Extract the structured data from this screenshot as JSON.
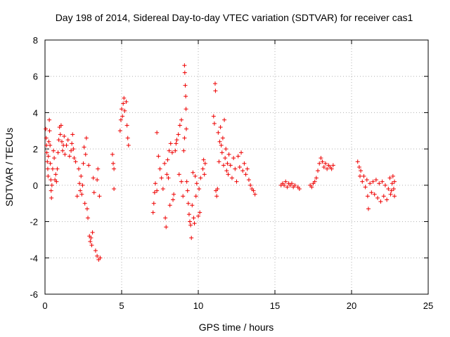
{
  "chart_data": {
    "type": "scatter",
    "title": "Day 198 of 2014, Sidereal Day-to-day VTEC variation (SDTVAR) for receiver cas1",
    "xlabel": "GPS time / hours",
    "ylabel": "SDTVAR / TECUs",
    "xlim": [
      0,
      25
    ],
    "ylim": [
      -6,
      8
    ],
    "xticks": [
      0,
      5,
      10,
      15,
      20,
      25
    ],
    "yticks": [
      -6,
      -4,
      -2,
      0,
      2,
      4,
      6,
      8
    ],
    "grid": true,
    "marker": "+",
    "color": "#ee0000",
    "series": [
      {
        "name": "cas1",
        "points": [
          [
            0.05,
            3.1
          ],
          [
            0.08,
            2.6
          ],
          [
            0.1,
            2.2
          ],
          [
            0.12,
            1.8
          ],
          [
            0.15,
            1.3
          ],
          [
            0.18,
            0.9
          ],
          [
            0.2,
            0.5
          ],
          [
            0.22,
            1.6
          ],
          [
            0.25,
            2.4
          ],
          [
            0.28,
            3.6
          ],
          [
            0.3,
            3.0
          ],
          [
            0.33,
            2.2
          ],
          [
            0.35,
            1.2
          ],
          [
            0.38,
            0.3
          ],
          [
            0.4,
            -0.3
          ],
          [
            0.42,
            -0.7
          ],
          [
            0.45,
            0.0
          ],
          [
            0.5,
            0.9
          ],
          [
            0.55,
            1.9
          ],
          [
            0.6,
            1.5
          ],
          [
            0.65,
            0.3
          ],
          [
            0.7,
            0.6
          ],
          [
            0.75,
            0.2
          ],
          [
            0.8,
            0.9
          ],
          [
            0.85,
            1.8
          ],
          [
            0.9,
            2.5
          ],
          [
            0.95,
            3.2
          ],
          [
            1.0,
            2.8
          ],
          [
            1.05,
            3.3
          ],
          [
            1.1,
            2.4
          ],
          [
            1.15,
            1.9
          ],
          [
            1.2,
            2.2
          ],
          [
            1.25,
            2.7
          ],
          [
            1.3,
            1.7
          ],
          [
            1.4,
            2.2
          ],
          [
            1.5,
            2.5
          ],
          [
            1.6,
            1.6
          ],
          [
            1.7,
            1.9
          ],
          [
            1.75,
            2.3
          ],
          [
            1.8,
            2.8
          ],
          [
            1.85,
            2.0
          ],
          [
            1.9,
            1.5
          ],
          [
            2.0,
            1.3
          ],
          [
            2.1,
            -0.6
          ],
          [
            2.2,
            0.9
          ],
          [
            2.25,
            0.1
          ],
          [
            2.3,
            -0.3
          ],
          [
            2.35,
            0.5
          ],
          [
            2.4,
            -0.5
          ],
          [
            2.45,
            0.0
          ],
          [
            2.5,
            1.2
          ],
          [
            2.55,
            2.1
          ],
          [
            2.6,
            -1.0
          ],
          [
            2.65,
            1.7
          ],
          [
            2.7,
            2.6
          ],
          [
            2.75,
            -1.3
          ],
          [
            2.8,
            -1.8
          ],
          [
            2.85,
            1.1
          ],
          [
            2.9,
            -2.8
          ],
          [
            2.95,
            -3.1
          ],
          [
            3.0,
            -2.9
          ],
          [
            3.05,
            -3.3
          ],
          [
            3.1,
            -2.6
          ],
          [
            3.15,
            0.4
          ],
          [
            3.2,
            -0.4
          ],
          [
            3.3,
            -3.6
          ],
          [
            3.4,
            -3.9
          ],
          [
            3.5,
            -4.1
          ],
          [
            3.6,
            -4.0
          ],
          [
            3.45,
            0.9
          ],
          [
            3.55,
            -0.6
          ],
          [
            3.4,
            0.3
          ],
          [
            4.4,
            1.7
          ],
          [
            4.45,
            1.2
          ],
          [
            4.5,
            0.9
          ],
          [
            4.5,
            -0.2
          ],
          [
            4.9,
            3.0
          ],
          [
            4.95,
            3.6
          ],
          [
            5.0,
            4.2
          ],
          [
            5.05,
            3.8
          ],
          [
            5.1,
            4.5
          ],
          [
            5.15,
            4.8
          ],
          [
            5.2,
            4.1
          ],
          [
            5.3,
            4.6
          ],
          [
            5.35,
            3.3
          ],
          [
            5.4,
            2.6
          ],
          [
            5.45,
            2.2
          ],
          [
            7.05,
            -1.5
          ],
          [
            7.1,
            -1.0
          ],
          [
            7.15,
            -0.4
          ],
          [
            7.2,
            0.1
          ],
          [
            7.3,
            -0.3
          ],
          [
            7.3,
            2.9
          ],
          [
            7.4,
            1.6
          ],
          [
            7.5,
            0.9
          ],
          [
            7.6,
            0.4
          ],
          [
            7.7,
            -0.2
          ],
          [
            7.8,
            1.2
          ],
          [
            7.85,
            -1.8
          ],
          [
            7.9,
            -2.3
          ],
          [
            7.95,
            0.6
          ],
          [
            8.0,
            1.4
          ],
          [
            8.05,
            0.4
          ],
          [
            8.1,
            1.9
          ],
          [
            8.15,
            -1.1
          ],
          [
            8.2,
            2.3
          ],
          [
            8.3,
            1.8
          ],
          [
            8.35,
            -0.8
          ],
          [
            8.4,
            -0.5
          ],
          [
            8.5,
            1.9
          ],
          [
            8.55,
            2.3
          ],
          [
            8.6,
            2.5
          ],
          [
            8.7,
            2.8
          ],
          [
            8.8,
            3.3
          ],
          [
            8.9,
            3.6
          ],
          [
            8.75,
            0.6
          ],
          [
            8.9,
            0.2
          ],
          [
            9.0,
            -0.6
          ],
          [
            9.05,
            1.9
          ],
          [
            9.1,
            2.6
          ],
          [
            9.1,
            6.6
          ],
          [
            9.12,
            6.2
          ],
          [
            9.15,
            5.5
          ],
          [
            9.18,
            4.9
          ],
          [
            9.2,
            4.2
          ],
          [
            9.22,
            3.1
          ],
          [
            9.25,
            0.2
          ],
          [
            9.3,
            -0.3
          ],
          [
            9.35,
            -1.0
          ],
          [
            9.4,
            -1.6
          ],
          [
            9.45,
            -2.0
          ],
          [
            9.5,
            -2.2
          ],
          [
            9.55,
            -2.9
          ],
          [
            9.6,
            -1.1
          ],
          [
            9.65,
            0.7
          ],
          [
            9.7,
            -1.8
          ],
          [
            9.75,
            -2.1
          ],
          [
            9.8,
            0.5
          ],
          [
            9.85,
            -0.6
          ],
          [
            9.9,
            0.1
          ],
          [
            10.0,
            -1.7
          ],
          [
            10.05,
            -0.2
          ],
          [
            10.1,
            -1.5
          ],
          [
            10.15,
            0.4
          ],
          [
            10.3,
            0.9
          ],
          [
            10.35,
            1.4
          ],
          [
            10.4,
            0.6
          ],
          [
            10.45,
            1.2
          ],
          [
            11.0,
            3.8
          ],
          [
            11.05,
            3.4
          ],
          [
            11.1,
            5.6
          ],
          [
            11.12,
            5.2
          ],
          [
            11.15,
            -0.3
          ],
          [
            11.2,
            -0.6
          ],
          [
            11.25,
            -0.2
          ],
          [
            11.3,
            2.9
          ],
          [
            11.35,
            1.3
          ],
          [
            11.4,
            2.4
          ],
          [
            11.45,
            3.2
          ],
          [
            11.5,
            2.2
          ],
          [
            11.55,
            1.8
          ],
          [
            11.6,
            2.6
          ],
          [
            11.65,
            1.1
          ],
          [
            11.7,
            3.6
          ],
          [
            11.75,
            1.5
          ],
          [
            11.8,
            2.0
          ],
          [
            11.85,
            0.8
          ],
          [
            11.9,
            1.2
          ],
          [
            11.95,
            0.6
          ],
          [
            12.0,
            1.7
          ],
          [
            12.1,
            1.1
          ],
          [
            12.2,
            0.4
          ],
          [
            12.3,
            1.5
          ],
          [
            12.4,
            0.9
          ],
          [
            12.5,
            0.2
          ],
          [
            12.6,
            1.6
          ],
          [
            12.7,
            1.0
          ],
          [
            12.8,
            1.8
          ],
          [
            12.9,
            0.8
          ],
          [
            13.0,
            1.2
          ],
          [
            13.1,
            0.6
          ],
          [
            13.2,
            0.9
          ],
          [
            13.3,
            0.3
          ],
          [
            13.4,
            0.0
          ],
          [
            13.5,
            -0.2
          ],
          [
            13.6,
            -0.3
          ],
          [
            13.7,
            -0.5
          ],
          [
            15.4,
            0.0
          ],
          [
            15.5,
            0.1
          ],
          [
            15.6,
            0.0
          ],
          [
            15.7,
            0.2
          ],
          [
            15.8,
            -0.1
          ],
          [
            15.9,
            0.1
          ],
          [
            16.0,
            0.0
          ],
          [
            16.1,
            0.1
          ],
          [
            16.2,
            -0.1
          ],
          [
            16.3,
            0.0
          ],
          [
            16.5,
            -0.1
          ],
          [
            16.6,
            -0.2
          ],
          [
            17.3,
            0.0
          ],
          [
            17.4,
            -0.1
          ],
          [
            17.5,
            0.1
          ],
          [
            17.6,
            0.2
          ],
          [
            17.7,
            0.4
          ],
          [
            17.8,
            0.8
          ],
          [
            17.9,
            1.2
          ],
          [
            18.0,
            1.5
          ],
          [
            18.1,
            1.3
          ],
          [
            18.2,
            1.0
          ],
          [
            18.3,
            1.2
          ],
          [
            18.4,
            0.9
          ],
          [
            18.5,
            1.1
          ],
          [
            18.6,
            1.0
          ],
          [
            18.7,
            0.9
          ],
          [
            18.8,
            1.1
          ],
          [
            20.4,
            1.3
          ],
          [
            20.5,
            1.0
          ],
          [
            20.55,
            0.5
          ],
          [
            20.6,
            0.8
          ],
          [
            20.7,
            0.2
          ],
          [
            20.8,
            0.5
          ],
          [
            20.9,
            -0.1
          ],
          [
            21.0,
            0.3
          ],
          [
            21.05,
            -0.6
          ],
          [
            21.1,
            -1.3
          ],
          [
            21.2,
            0.1
          ],
          [
            21.3,
            -0.4
          ],
          [
            21.4,
            0.2
          ],
          [
            21.5,
            -0.5
          ],
          [
            21.6,
            0.3
          ],
          [
            21.7,
            -0.7
          ],
          [
            21.8,
            0.1
          ],
          [
            21.9,
            -0.9
          ],
          [
            22.0,
            0.2
          ],
          [
            22.1,
            -0.6
          ],
          [
            22.2,
            0.0
          ],
          [
            22.3,
            -0.8
          ],
          [
            22.4,
            -0.2
          ],
          [
            22.5,
            0.4
          ],
          [
            22.55,
            -0.5
          ],
          [
            22.6,
            -0.3
          ],
          [
            22.65,
            0.1
          ],
          [
            22.7,
            0.5
          ],
          [
            22.75,
            -0.2
          ],
          [
            22.8,
            0.2
          ],
          [
            22.8,
            -0.6
          ]
        ]
      }
    ]
  }
}
